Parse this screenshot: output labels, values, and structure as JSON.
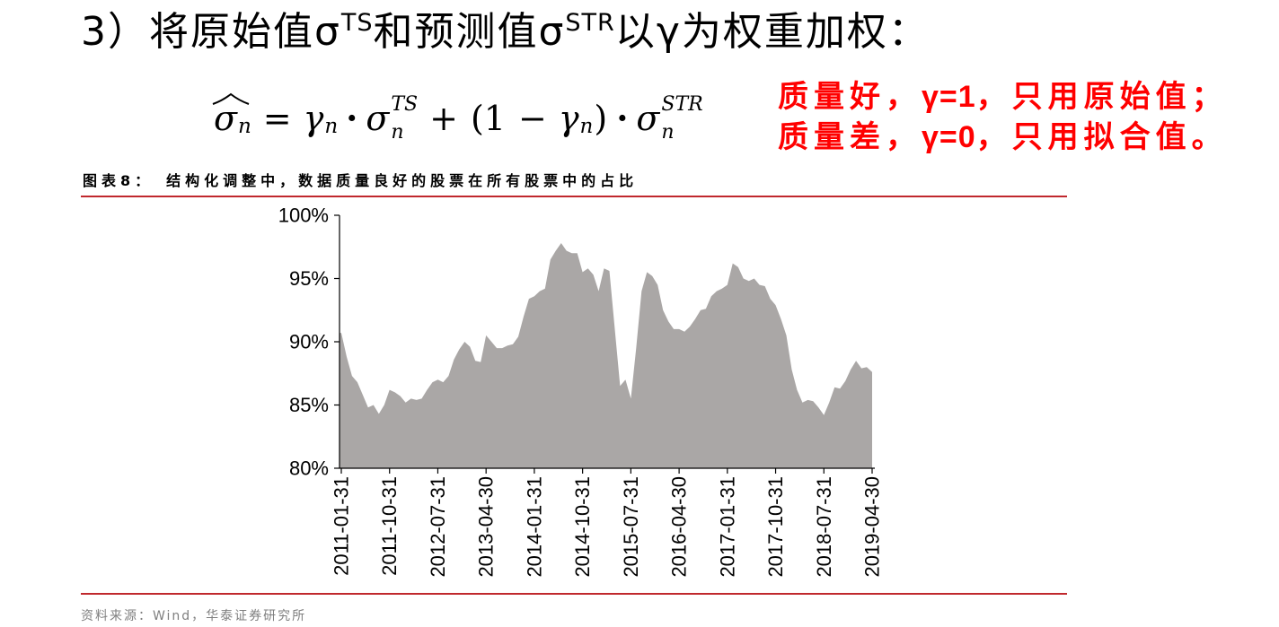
{
  "colors": {
    "note_red": "#ff0000",
    "rule_red": "#c0282d",
    "area_fill": "#aaa7a6"
  },
  "heading": {
    "prefix": "3）将原始值σ",
    "sup1": "TS",
    "mid": "和预测值σ",
    "sup2": "STR",
    "suffix": "以γ为权重加权："
  },
  "formula": {
    "lhs": {
      "base": "σ",
      "sub": "n"
    },
    "equals": "=",
    "term1": {
      "base": "γ",
      "sub": "n"
    },
    "dot1": "·",
    "term2": {
      "base": "σ",
      "sub": "n",
      "sup": "TS"
    },
    "plus": "+",
    "open": "(1",
    "minus": "−",
    "term3": {
      "base": "γ",
      "sub": "n"
    },
    "close": ")",
    "dot2": "·",
    "term4": {
      "base": "σ",
      "sub": "n",
      "sup": "STR"
    }
  },
  "notes": [
    {
      "pre": "质量好，",
      "bold": "γ=1",
      "post": "，只用原始值；"
    },
    {
      "pre": "质量差，",
      "bold": "γ=0",
      "post": "，只用拟合值。"
    }
  ],
  "chart_data": {
    "type": "area",
    "figure_label": "图表8：",
    "title": "结构化调整中，数据质量良好的股票在所有股票中的占比",
    "xlabel": "",
    "ylabel": "",
    "x": [
      "2011-01-31",
      "2011-02-28",
      "2011-03-31",
      "2011-04-30",
      "2011-05-31",
      "2011-06-30",
      "2011-07-31",
      "2011-08-31",
      "2011-09-30",
      "2011-10-31",
      "2011-11-30",
      "2011-12-31",
      "2012-01-31",
      "2012-02-29",
      "2012-03-31",
      "2012-04-30",
      "2012-05-31",
      "2012-06-30",
      "2012-07-31",
      "2012-08-31",
      "2012-09-30",
      "2012-10-31",
      "2012-11-30",
      "2012-12-31",
      "2013-01-31",
      "2013-02-28",
      "2013-03-31",
      "2013-04-30",
      "2013-05-31",
      "2013-06-30",
      "2013-07-31",
      "2013-08-31",
      "2013-09-30",
      "2013-10-31",
      "2013-11-30",
      "2013-12-31",
      "2014-01-31",
      "2014-02-28",
      "2014-03-31",
      "2014-04-30",
      "2014-05-31",
      "2014-06-30",
      "2014-07-31",
      "2014-08-31",
      "2014-09-30",
      "2014-10-31",
      "2014-11-30",
      "2014-12-31",
      "2015-01-31",
      "2015-02-28",
      "2015-03-31",
      "2015-04-30",
      "2015-05-31",
      "2015-06-30",
      "2015-07-31",
      "2015-08-31",
      "2015-09-30",
      "2015-10-31",
      "2015-11-30",
      "2015-12-31",
      "2016-01-31",
      "2016-02-29",
      "2016-03-31",
      "2016-04-30",
      "2016-05-31",
      "2016-06-30",
      "2016-07-31",
      "2016-08-31",
      "2016-09-30",
      "2016-10-31",
      "2016-11-30",
      "2016-12-31",
      "2017-01-31",
      "2017-02-28",
      "2017-03-31",
      "2017-04-30",
      "2017-05-31",
      "2017-06-30",
      "2017-07-31",
      "2017-08-31",
      "2017-09-30",
      "2017-10-31",
      "2017-11-30",
      "2017-12-31",
      "2018-01-31",
      "2018-02-28",
      "2018-03-31",
      "2018-04-30",
      "2018-05-31",
      "2018-06-30",
      "2018-07-31",
      "2018-08-31",
      "2018-09-30",
      "2018-10-31",
      "2018-11-30",
      "2018-12-31",
      "2019-01-31",
      "2019-02-28",
      "2019-03-31",
      "2019-04-30"
    ],
    "values": [
      90.7,
      88.8,
      87.3,
      86.8,
      85.8,
      84.8,
      85.0,
      84.3,
      85.0,
      86.2,
      86.0,
      85.7,
      85.2,
      85.5,
      85.4,
      85.5,
      86.2,
      86.8,
      87.0,
      86.8,
      87.3,
      88.6,
      89.4,
      90.0,
      89.6,
      88.5,
      88.4,
      90.5,
      90.0,
      89.5,
      89.5,
      89.7,
      89.8,
      90.4,
      92.0,
      93.4,
      93.6,
      94.0,
      94.2,
      96.5,
      97.2,
      97.8,
      97.2,
      97.0,
      97.0,
      95.5,
      95.8,
      95.3,
      94.0,
      95.8,
      95.6,
      91.0,
      86.5,
      87.0,
      85.5,
      89.5,
      94.0,
      95.5,
      95.2,
      94.5,
      92.5,
      91.6,
      91.0,
      91.0,
      90.8,
      91.2,
      91.8,
      92.5,
      92.6,
      93.6,
      94.0,
      94.2,
      94.5,
      96.2,
      95.9,
      95.0,
      94.8,
      95.0,
      94.5,
      94.4,
      93.4,
      92.9,
      91.8,
      90.5,
      87.8,
      86.2,
      85.2,
      85.4,
      85.3,
      84.8,
      84.2,
      85.2,
      86.4,
      86.3,
      86.9,
      87.8,
      88.5,
      87.9,
      88.0,
      87.6
    ],
    "ylim": [
      80,
      100
    ],
    "yticks": [
      80,
      85,
      90,
      95,
      100
    ],
    "ytick_labels": [
      "80%",
      "85%",
      "90%",
      "95%",
      "100%"
    ],
    "xticks": [
      "2011-01-31",
      "2011-10-31",
      "2012-07-31",
      "2013-04-30",
      "2014-01-31",
      "2014-10-31",
      "2015-07-31",
      "2016-04-30",
      "2017-01-31",
      "2017-10-31",
      "2018-07-31",
      "2019-04-30"
    ],
    "grid": false,
    "source": "资料来源：Wind，华泰证券研究所"
  }
}
